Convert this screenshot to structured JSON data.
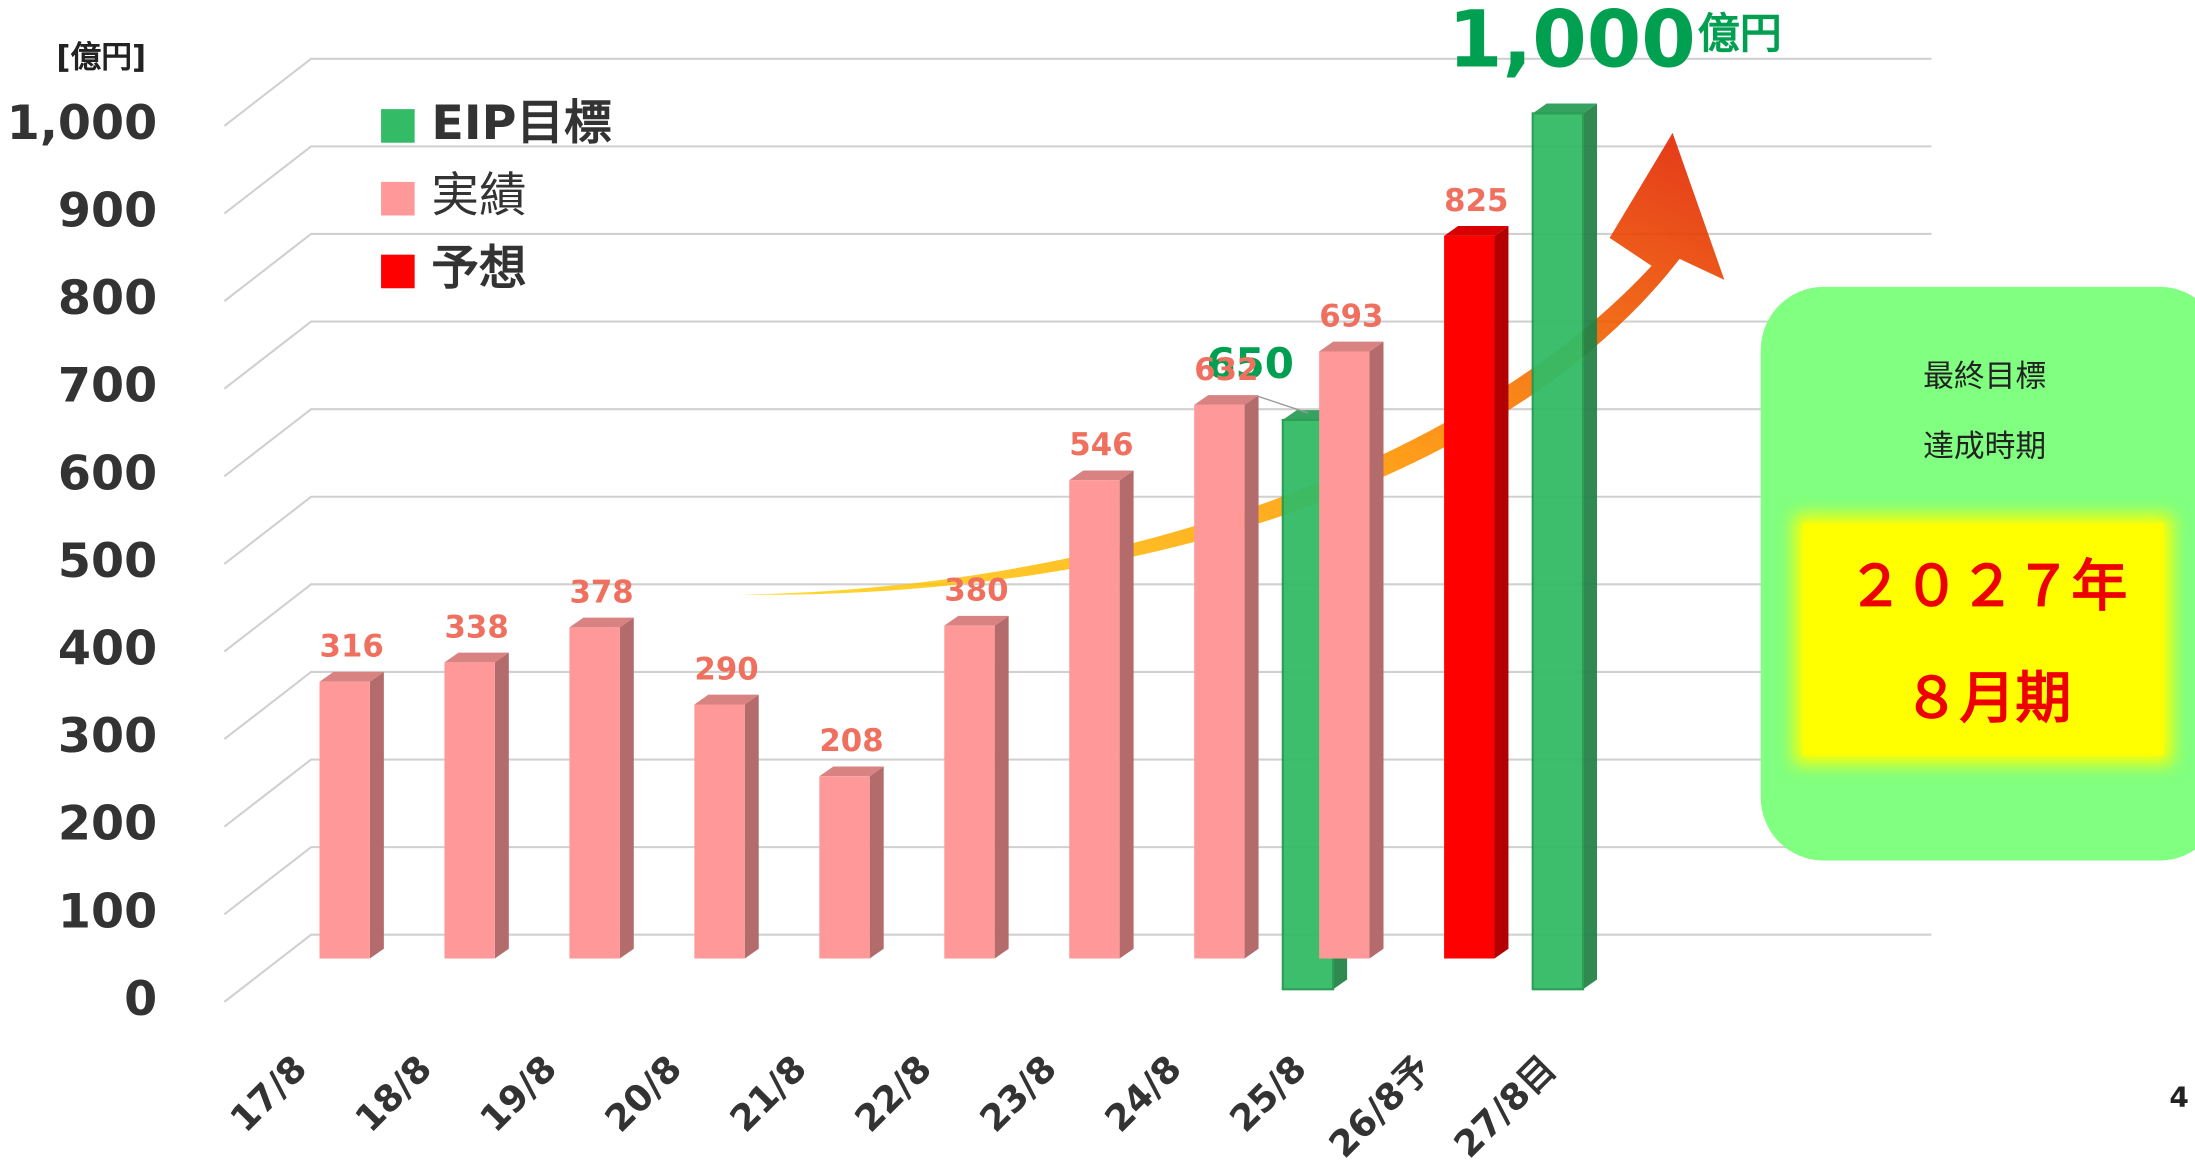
{
  "chart_data": {
    "type": "bar",
    "unit_label": "[億円]",
    "categories": [
      "17/8",
      "18/8",
      "19/8",
      "20/8",
      "21/8",
      "22/8",
      "23/8",
      "24/8",
      "25/8",
      "26/8予",
      "27/8目"
    ],
    "series": [
      {
        "name": "EIP目標",
        "color": "#33bb66",
        "values": [
          null,
          null,
          null,
          null,
          null,
          null,
          null,
          null,
          650,
          null,
          1000
        ],
        "value_labels": [
          null,
          null,
          null,
          null,
          null,
          null,
          null,
          null,
          "650",
          null,
          "1,000"
        ]
      },
      {
        "name": "実績",
        "color": "#ff9999",
        "values": [
          316,
          338,
          378,
          290,
          208,
          380,
          546,
          632,
          693,
          null,
          null
        ]
      },
      {
        "name": "予想",
        "color": "#ff0000",
        "values": [
          null,
          null,
          null,
          null,
          null,
          null,
          null,
          null,
          null,
          825,
          null
        ]
      }
    ],
    "ylim": [
      0,
      1000
    ],
    "yticks": [
      0,
      100,
      200,
      300,
      400,
      500,
      600,
      700,
      800,
      900,
      {
        "value": 1000,
        "label": "1,000"
      }
    ],
    "grid": true,
    "annotation": "億円",
    "callout": {
      "lines": [
        "最終目標",
        "達成時期"
      ],
      "highlight": [
        "２０２７年",
        "８月期"
      ]
    },
    "page_number": "4"
  }
}
